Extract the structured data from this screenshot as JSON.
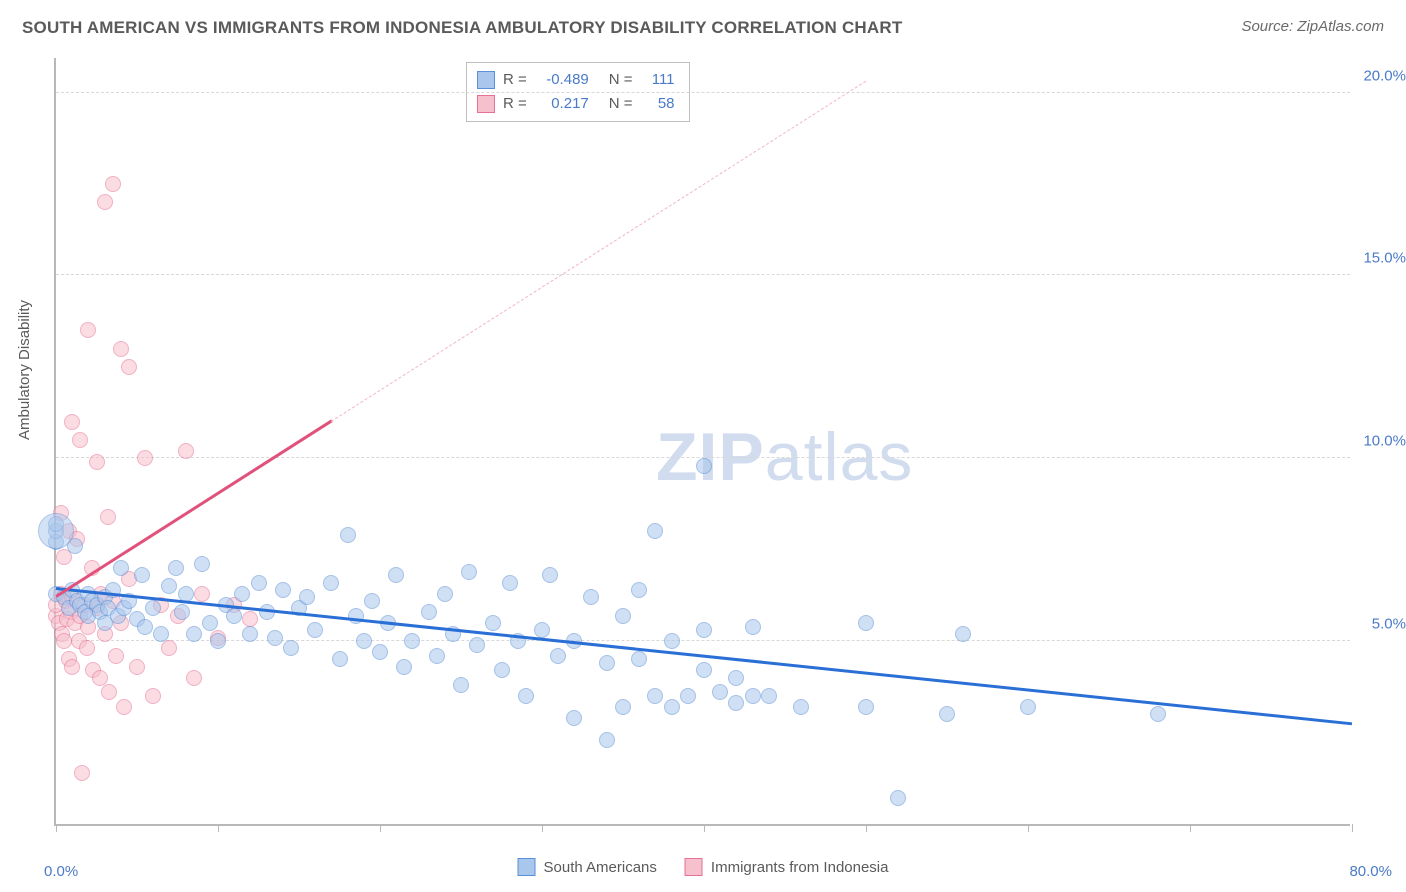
{
  "title": "SOUTH AMERICAN VS IMMIGRANTS FROM INDONESIA AMBULATORY DISABILITY CORRELATION CHART",
  "source_label": "Source: ZipAtlas.com",
  "yaxis_label": "Ambulatory Disability",
  "watermark": {
    "bold": "ZIP",
    "rest": "atlas"
  },
  "chart": {
    "type": "scatter",
    "background_color": "#ffffff",
    "grid_color": "#d8d8d8",
    "axis_color": "#b8b8b8",
    "tick_label_color": "#4a7ac8",
    "axis_label_color": "#5a5a5a",
    "xlim": [
      0,
      80
    ],
    "ylim": [
      0,
      21
    ],
    "ytick_values": [
      5,
      10,
      15,
      20
    ],
    "ytick_labels": [
      "5.0%",
      "10.0%",
      "15.0%",
      "20.0%"
    ],
    "xtick_values": [
      0,
      10,
      20,
      30,
      40,
      50,
      60,
      70,
      80
    ],
    "xlabel_min": "0.0%",
    "xlabel_max": "80.0%",
    "label_fontsize": 15,
    "title_fontsize": 17
  },
  "series": {
    "blue": {
      "label": "South Americans",
      "fill_color": "#a9c6ec",
      "stroke_color": "#5b8fd6",
      "fill_opacity": 0.55,
      "marker_r": 8,
      "points": [
        [
          0,
          6.3
        ],
        [
          0,
          7.7
        ],
        [
          0,
          8.0
        ],
        [
          0,
          8.2
        ],
        [
          0.5,
          6.2
        ],
        [
          0.8,
          5.9
        ],
        [
          1,
          6.4
        ],
        [
          1.2,
          7.6
        ],
        [
          1.3,
          6.1
        ],
        [
          1.5,
          6.0
        ],
        [
          1.8,
          5.8
        ],
        [
          2,
          6.3
        ],
        [
          2,
          5.7
        ],
        [
          2.2,
          6.1
        ],
        [
          2.5,
          6.0
        ],
        [
          2.7,
          5.8
        ],
        [
          3,
          6.2
        ],
        [
          3,
          5.5
        ],
        [
          3.2,
          5.9
        ],
        [
          3.5,
          6.4
        ],
        [
          3.8,
          5.7
        ],
        [
          4,
          7.0
        ],
        [
          4.2,
          5.9
        ],
        [
          4.5,
          6.1
        ],
        [
          5,
          5.6
        ],
        [
          5.3,
          6.8
        ],
        [
          5.5,
          5.4
        ],
        [
          6,
          5.9
        ],
        [
          6.5,
          5.2
        ],
        [
          7,
          6.5
        ],
        [
          7.4,
          7.0
        ],
        [
          7.8,
          5.8
        ],
        [
          8,
          6.3
        ],
        [
          8.5,
          5.2
        ],
        [
          9,
          7.1
        ],
        [
          9.5,
          5.5
        ],
        [
          10,
          5.0
        ],
        [
          10.5,
          6.0
        ],
        [
          11,
          5.7
        ],
        [
          11.5,
          6.3
        ],
        [
          12,
          5.2
        ],
        [
          12.5,
          6.6
        ],
        [
          13,
          5.8
        ],
        [
          13.5,
          5.1
        ],
        [
          14,
          6.4
        ],
        [
          14.5,
          4.8
        ],
        [
          15,
          5.9
        ],
        [
          15.5,
          6.2
        ],
        [
          16,
          5.3
        ],
        [
          17,
          6.6
        ],
        [
          17.5,
          4.5
        ],
        [
          18,
          7.9
        ],
        [
          18.5,
          5.7
        ],
        [
          19,
          5.0
        ],
        [
          19.5,
          6.1
        ],
        [
          20,
          4.7
        ],
        [
          20.5,
          5.5
        ],
        [
          21,
          6.8
        ],
        [
          21.5,
          4.3
        ],
        [
          22,
          5.0
        ],
        [
          23,
          5.8
        ],
        [
          23.5,
          4.6
        ],
        [
          24,
          6.3
        ],
        [
          24.5,
          5.2
        ],
        [
          25,
          3.8
        ],
        [
          25.5,
          6.9
        ],
        [
          26,
          4.9
        ],
        [
          27,
          5.5
        ],
        [
          27.5,
          4.2
        ],
        [
          28,
          6.6
        ],
        [
          28.5,
          5.0
        ],
        [
          29,
          3.5
        ],
        [
          30,
          5.3
        ],
        [
          30.5,
          6.8
        ],
        [
          31,
          4.6
        ],
        [
          32,
          5.0
        ],
        [
          32,
          2.9
        ],
        [
          33,
          6.2
        ],
        [
          34,
          4.4
        ],
        [
          34,
          2.3
        ],
        [
          35,
          5.7
        ],
        [
          35,
          3.2
        ],
        [
          36,
          6.4
        ],
        [
          36,
          4.5
        ],
        [
          37,
          8.0
        ],
        [
          37,
          3.5
        ],
        [
          38,
          3.2
        ],
        [
          38,
          5.0
        ],
        [
          39,
          3.5
        ],
        [
          40,
          5.3
        ],
        [
          40,
          4.2
        ],
        [
          40,
          9.8
        ],
        [
          41,
          3.6
        ],
        [
          42,
          4.0
        ],
        [
          42,
          3.3
        ],
        [
          43,
          5.4
        ],
        [
          43,
          3.5
        ],
        [
          44,
          3.5
        ],
        [
          46,
          3.2
        ],
        [
          50,
          5.5
        ],
        [
          50,
          3.2
        ],
        [
          52,
          0.7
        ],
        [
          55,
          3.0
        ],
        [
          56,
          5.2
        ],
        [
          60,
          3.2
        ],
        [
          68,
          3.0
        ]
      ],
      "large_point": {
        "x": 0,
        "y": 8.0,
        "r": 18
      },
      "trend": {
        "x1": 0,
        "y1": 6.4,
        "x2": 80,
        "y2": 2.7,
        "color": "#2a6fd6",
        "width": 2.5
      }
    },
    "pink": {
      "label": "Immigrants from Indonesia",
      "fill_color": "#f6c0cc",
      "stroke_color": "#e77096",
      "fill_opacity": 0.55,
      "marker_r": 8,
      "points": [
        [
          0,
          5.7
        ],
        [
          0,
          6.0
        ],
        [
          0.2,
          5.5
        ],
        [
          0.3,
          6.3
        ],
        [
          0.3,
          8.5
        ],
        [
          0.4,
          5.2
        ],
        [
          0.5,
          7.3
        ],
        [
          0.5,
          5.0
        ],
        [
          0.6,
          6.1
        ],
        [
          0.7,
          5.6
        ],
        [
          0.8,
          8.0
        ],
        [
          0.8,
          4.5
        ],
        [
          0.9,
          5.8
        ],
        [
          1,
          6.2
        ],
        [
          1,
          11.0
        ],
        [
          1,
          4.3
        ],
        [
          1.2,
          5.5
        ],
        [
          1.3,
          7.8
        ],
        [
          1.4,
          5.0
        ],
        [
          1.5,
          10.5
        ],
        [
          1.5,
          5.7
        ],
        [
          1.6,
          1.4
        ],
        [
          1.8,
          6.0
        ],
        [
          1.9,
          4.8
        ],
        [
          2,
          13.5
        ],
        [
          2,
          5.4
        ],
        [
          2.2,
          7.0
        ],
        [
          2.3,
          4.2
        ],
        [
          2.5,
          9.9
        ],
        [
          2.5,
          5.9
        ],
        [
          2.7,
          4.0
        ],
        [
          2.8,
          6.3
        ],
        [
          3,
          17.0
        ],
        [
          3,
          5.2
        ],
        [
          3.2,
          8.4
        ],
        [
          3.3,
          3.6
        ],
        [
          3.5,
          17.5
        ],
        [
          3.5,
          6.1
        ],
        [
          3.7,
          4.6
        ],
        [
          4,
          13.0
        ],
        [
          4,
          5.5
        ],
        [
          4.2,
          3.2
        ],
        [
          4.5,
          12.5
        ],
        [
          4.5,
          6.7
        ],
        [
          5,
          4.3
        ],
        [
          5.5,
          10.0
        ],
        [
          6,
          3.5
        ],
        [
          6.5,
          6.0
        ],
        [
          7,
          4.8
        ],
        [
          7.5,
          5.7
        ],
        [
          8,
          10.2
        ],
        [
          8.5,
          4.0
        ],
        [
          9,
          6.3
        ],
        [
          10,
          5.1
        ],
        [
          11,
          6.0
        ],
        [
          12,
          5.6
        ]
      ],
      "trend_solid": {
        "x1": 0,
        "y1": 6.2,
        "x2": 17,
        "y2": 11.0,
        "color": "#e0527c",
        "width": 2.5
      },
      "trend_dashed": {
        "x1": 17,
        "y1": 11.0,
        "x2": 50,
        "y2": 20.3,
        "color": "#f2b5c5",
        "width": 1.5
      }
    }
  },
  "stats": {
    "rows": [
      {
        "swatch_fill": "#a9c6ec",
        "swatch_stroke": "#5b8fd6",
        "r": "-0.489",
        "n": "111"
      },
      {
        "swatch_fill": "#f6c0cc",
        "swatch_stroke": "#e77096",
        "r": "0.217",
        "n": "58"
      }
    ],
    "labels": {
      "r": "R =",
      "n": "N ="
    }
  },
  "legend": [
    {
      "swatch_fill": "#a9c6ec",
      "swatch_stroke": "#5b8fd6",
      "label": "South Americans"
    },
    {
      "swatch_fill": "#f6c0cc",
      "swatch_stroke": "#e77096",
      "label": "Immigrants from Indonesia"
    }
  ]
}
